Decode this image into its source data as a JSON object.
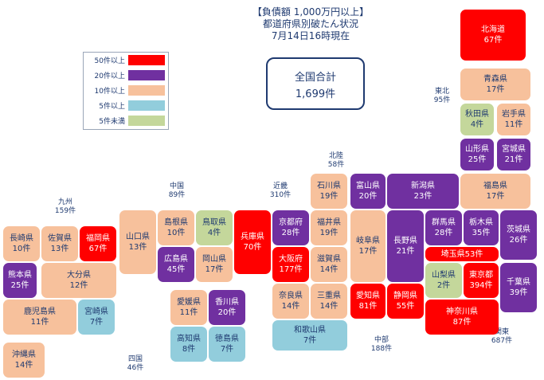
{
  "title": {
    "line1": "【負債額 1,000万円以上】",
    "line2": "都道府県別破たん状況",
    "line3": "7月14日16時現在"
  },
  "legend": {
    "items": [
      {
        "label": "50件以上",
        "color": "#ff0000"
      },
      {
        "label": "20件以上",
        "color": "#7030a0"
      },
      {
        "label": "10件以上",
        "color": "#f7c19c"
      },
      {
        "label": "5件以上",
        "color": "#92cddc"
      },
      {
        "label": "5件未満",
        "color": "#c4d79b"
      }
    ]
  },
  "total": {
    "label": "全国合計",
    "value": "1,699件"
  },
  "regions": {
    "hokkaido_tohoku": {
      "name": "東北",
      "count": "95件"
    },
    "hokuriku": {
      "name": "北陸",
      "count": "58件"
    },
    "kinki": {
      "name": "近畿",
      "count": "310件"
    },
    "chugoku": {
      "name": "中国",
      "count": "89件"
    },
    "kyushu": {
      "name": "九州",
      "count": "159件"
    },
    "shikoku": {
      "name": "四国",
      "count": "46件"
    },
    "chubu": {
      "name": "中部",
      "count": "188件"
    },
    "kanto": {
      "name": "関東",
      "count": "687件"
    }
  },
  "prefectures": [
    {
      "id": "hokkaido",
      "name": "北海道",
      "count": "67件",
      "color": "#ff0000"
    },
    {
      "id": "aomori",
      "name": "青森県",
      "count": "17件",
      "color": "#f7c19c"
    },
    {
      "id": "akita",
      "name": "秋田県",
      "count": "4件",
      "color": "#c4d79b"
    },
    {
      "id": "iwate",
      "name": "岩手県",
      "count": "11件",
      "color": "#f7c19c"
    },
    {
      "id": "yamagata",
      "name": "山形県",
      "count": "25件",
      "color": "#7030a0"
    },
    {
      "id": "miyagi",
      "name": "宮城県",
      "count": "21件",
      "color": "#7030a0"
    },
    {
      "id": "fukushima",
      "name": "福島県",
      "count": "17件",
      "color": "#f7c19c"
    },
    {
      "id": "niigata",
      "name": "新潟県",
      "count": "23件",
      "color": "#7030a0"
    },
    {
      "id": "ishikawa",
      "name": "石川県",
      "count": "19件",
      "color": "#f7c19c"
    },
    {
      "id": "toyama",
      "name": "富山県",
      "count": "20件",
      "color": "#7030a0"
    },
    {
      "id": "fukui",
      "name": "福井県",
      "count": "19件",
      "color": "#f7c19c"
    },
    {
      "id": "shiga",
      "name": "滋賀県",
      "count": "14件",
      "color": "#f7c19c"
    },
    {
      "id": "gifu",
      "name": "岐阜県",
      "count": "17件",
      "color": "#f7c19c"
    },
    {
      "id": "nagano",
      "name": "長野県",
      "count": "21件",
      "color": "#7030a0"
    },
    {
      "id": "gunma",
      "name": "群馬県",
      "count": "28件",
      "color": "#7030a0"
    },
    {
      "id": "tochigi",
      "name": "栃木県",
      "count": "35件",
      "color": "#7030a0"
    },
    {
      "id": "ibaraki",
      "name": "茨城県",
      "count": "26件",
      "color": "#7030a0"
    },
    {
      "id": "saitama",
      "name": "埼玉県53件",
      "count": "",
      "color": "#ff0000"
    },
    {
      "id": "yamanashi",
      "name": "山梨県",
      "count": "2件",
      "color": "#c4d79b"
    },
    {
      "id": "tokyo",
      "name": "東京都",
      "count": "394件",
      "color": "#ff0000"
    },
    {
      "id": "chiba",
      "name": "千葉県",
      "count": "39件",
      "color": "#7030a0"
    },
    {
      "id": "kanagawa",
      "name": "神奈川県",
      "count": "87件",
      "color": "#ff0000"
    },
    {
      "id": "shizuoka",
      "name": "静岡県",
      "count": "55件",
      "color": "#ff0000"
    },
    {
      "id": "aichi",
      "name": "愛知県",
      "count": "81件",
      "color": "#ff0000"
    },
    {
      "id": "mie",
      "name": "三重県",
      "count": "14件",
      "color": "#f7c19c"
    },
    {
      "id": "nara",
      "name": "奈良県",
      "count": "14件",
      "color": "#f7c19c"
    },
    {
      "id": "wakayama",
      "name": "和歌山県",
      "count": "7件",
      "color": "#92cddc"
    },
    {
      "id": "kyoto",
      "name": "京都府",
      "count": "28件",
      "color": "#7030a0"
    },
    {
      "id": "osaka",
      "name": "大阪府",
      "count": "177件",
      "color": "#ff0000"
    },
    {
      "id": "hyogo",
      "name": "兵庫県",
      "count": "70件",
      "color": "#ff0000"
    },
    {
      "id": "tottori",
      "name": "鳥取県",
      "count": "4件",
      "color": "#c4d79b"
    },
    {
      "id": "shimane",
      "name": "島根県",
      "count": "10件",
      "color": "#f7c19c"
    },
    {
      "id": "okayama",
      "name": "岡山県",
      "count": "17件",
      "color": "#f7c19c"
    },
    {
      "id": "hiroshima",
      "name": "広島県",
      "count": "45件",
      "color": "#7030a0"
    },
    {
      "id": "yamaguchi",
      "name": "山口県",
      "count": "13件",
      "color": "#f7c19c"
    },
    {
      "id": "kagawa",
      "name": "香川県",
      "count": "20件",
      "color": "#7030a0"
    },
    {
      "id": "ehime",
      "name": "愛媛県",
      "count": "11件",
      "color": "#f7c19c"
    },
    {
      "id": "tokushima",
      "name": "徳島県",
      "count": "7件",
      "color": "#92cddc"
    },
    {
      "id": "kochi",
      "name": "高知県",
      "count": "8件",
      "color": "#92cddc"
    },
    {
      "id": "fukuoka",
      "name": "福岡県",
      "count": "67件",
      "color": "#ff0000"
    },
    {
      "id": "saga",
      "name": "佐賀県",
      "count": "13件",
      "color": "#f7c19c"
    },
    {
      "id": "nagasaki",
      "name": "長崎県",
      "count": "10件",
      "color": "#f7c19c"
    },
    {
      "id": "kumamoto",
      "name": "熊本県",
      "count": "25件",
      "color": "#7030a0"
    },
    {
      "id": "oita",
      "name": "大分県",
      "count": "12件",
      "color": "#f7c19c"
    },
    {
      "id": "miyazaki",
      "name": "宮崎県",
      "count": "7件",
      "color": "#92cddc"
    },
    {
      "id": "kagoshima",
      "name": "鹿児島県",
      "count": "11件",
      "color": "#f7c19c"
    },
    {
      "id": "okinawa",
      "name": "沖縄県",
      "count": "14件",
      "color": "#f7c19c"
    }
  ]
}
